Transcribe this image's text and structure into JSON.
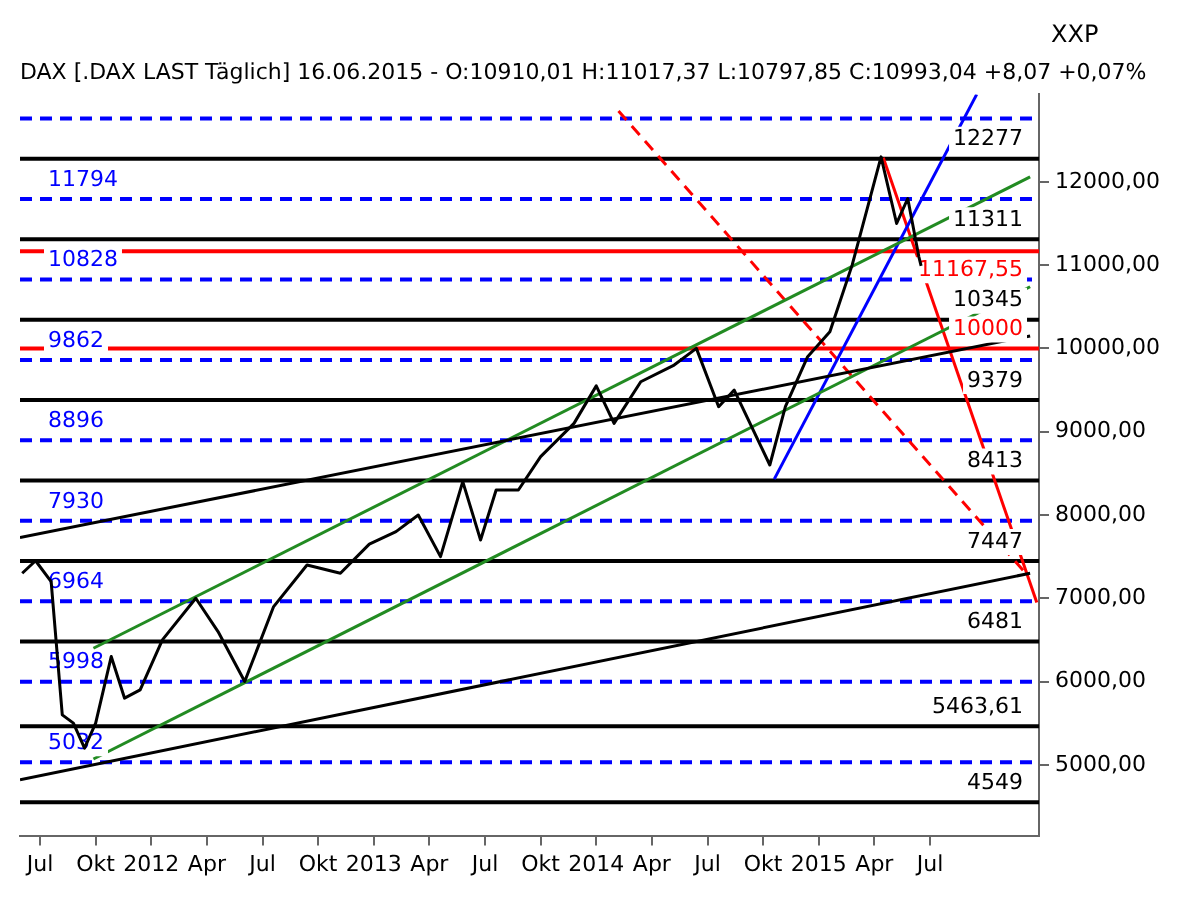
{
  "chart_data": {
    "type": "line",
    "title": "DAX [.DAX LAST Täglich] 16.06.2015 - O:10910,01 H:11017,37 L:10797,85 C:10993,04 +8,07 +0,07%",
    "annotations": [
      "XXP"
    ],
    "xlim": [
      2011.41,
      2015.99
    ],
    "xticks": [
      {
        "value": 2011.5,
        "label": "Jul"
      },
      {
        "value": 2011.75,
        "label": "Okt"
      },
      {
        "value": 2012,
        "label": "2012"
      },
      {
        "value": 2012.25,
        "label": "Apr"
      },
      {
        "value": 2012.5,
        "label": "Jul"
      },
      {
        "value": 2012.75,
        "label": "Okt"
      },
      {
        "value": 2013,
        "label": "2013"
      },
      {
        "value": 2013.25,
        "label": "Apr"
      },
      {
        "value": 2013.5,
        "label": "Jul"
      },
      {
        "value": 2013.75,
        "label": "Okt"
      },
      {
        "value": 2014,
        "label": "2014"
      },
      {
        "value": 2014.25,
        "label": "Apr"
      },
      {
        "value": 2014.5,
        "label": "Jul"
      },
      {
        "value": 2014.75,
        "label": "Okt"
      },
      {
        "value": 2015,
        "label": "2015"
      },
      {
        "value": 2015.25,
        "label": "Apr"
      },
      {
        "value": 2015.5,
        "label": "Jul"
      }
    ],
    "ylim": [
      4150,
      13050
    ],
    "yticks": [
      {
        "value": 5000,
        "label": "5000,00"
      },
      {
        "value": 6000,
        "label": "6000,00"
      },
      {
        "value": 7000,
        "label": "7000,00"
      },
      {
        "value": 8000,
        "label": "8000,00"
      },
      {
        "value": 9000,
        "label": "9000,00"
      },
      {
        "value": 10000,
        "label": "10000,00"
      },
      {
        "value": 11000,
        "label": "11000,00"
      },
      {
        "value": 12000,
        "label": "12000,00"
      }
    ],
    "grid": false,
    "legend": false,
    "marker": "none",
    "series": [
      {
        "color": "#000000",
        "x": [
          2011.42,
          2011.48,
          2011.55,
          2011.6,
          2011.65,
          2011.7,
          2011.75,
          2011.82,
          2011.88,
          2011.95,
          2012.05,
          2012.2,
          2012.3,
          2012.42,
          2012.55,
          2012.7,
          2012.85,
          2012.98,
          2013.1,
          2013.2,
          2013.3,
          2013.4,
          2013.48,
          2013.55,
          2013.65,
          2013.75,
          2013.9,
          2014,
          2014.08,
          2014.2,
          2014.35,
          2014.45,
          2014.55,
          2014.62,
          2014.78,
          2014.85,
          2014.95,
          2015.05,
          2015.15,
          2015.25,
          2015.28,
          2015.35,
          2015.4,
          2015.45,
          2015.46
        ],
        "values": [
          7300,
          7450,
          7200,
          5600,
          5500,
          5200,
          5500,
          6300,
          5800,
          5900,
          6500,
          7000,
          6600,
          6000,
          6900,
          7400,
          7300,
          7650,
          7800,
          8000,
          7500,
          8400,
          7700,
          8300,
          8300,
          8700,
          9100,
          9550,
          9100,
          9600,
          9800,
          10000,
          9300,
          9500,
          8600,
          9300,
          9900,
          10200,
          11000,
          12000,
          12300,
          11500,
          11800,
          11100,
          10990
        ]
      },
      {
        "type": "line",
        "color": "#000000",
        "x": [
          2011.41,
          2015.95
        ],
        "values": [
          4820,
          7300
        ]
      },
      {
        "type": "line",
        "color": "#000000",
        "x": [
          2011.41,
          2015.95
        ],
        "values": [
          7730,
          10150
        ]
      },
      {
        "type": "line",
        "color": "#228b22",
        "x": [
          2011.74,
          2015.95
        ],
        "values": [
          6400,
          12060
        ]
      },
      {
        "type": "line",
        "color": "#228b22",
        "x": [
          2011.74,
          2015.95
        ],
        "values": [
          5070,
          10740
        ]
      },
      {
        "type": "line",
        "color": "#0000ff",
        "x": [
          2014.8,
          2015.71
        ],
        "values": [
          8430,
          13050
        ]
      },
      {
        "type": "line",
        "color": "#ff0000",
        "x": [
          2015.29,
          2015.98
        ],
        "values": [
          12290,
          6950
        ]
      },
      {
        "type": "line",
        "color": "#ff0000",
        "line_style": "dashed",
        "x": [
          2014.1,
          2015.93
        ],
        "values": [
          12850,
          7300
        ]
      }
    ],
    "ref_lines": [
      {
        "axis": "y",
        "value": 12760,
        "color": "#0000ff",
        "line_style": "dashed"
      },
      {
        "axis": "y",
        "value": 11794,
        "label": "11794",
        "color": "#0000ff",
        "line_style": "dashed"
      },
      {
        "axis": "y",
        "value": 10828,
        "label": "10828",
        "color": "#0000ff",
        "line_style": "dashed"
      },
      {
        "axis": "y",
        "value": 9862,
        "label": "9862",
        "color": "#0000ff",
        "line_style": "dashed"
      },
      {
        "axis": "y",
        "value": 8896,
        "label": "8896",
        "color": "#0000ff",
        "line_style": "dashed"
      },
      {
        "axis": "y",
        "value": 7930,
        "label": "7930",
        "color": "#0000ff",
        "line_style": "dashed"
      },
      {
        "axis": "y",
        "value": 6964,
        "label": "6964",
        "color": "#0000ff",
        "line_style": "dashed"
      },
      {
        "axis": "y",
        "value": 5998,
        "label": "5998",
        "color": "#0000ff",
        "line_style": "dashed"
      },
      {
        "axis": "y",
        "value": 5032,
        "label": "5032",
        "color": "#0000ff",
        "line_style": "dashed"
      },
      {
        "axis": "y",
        "value": 12277,
        "label": "12277",
        "color": "#000000",
        "line_style": "solid"
      },
      {
        "axis": "y",
        "value": 11311,
        "label": "11311",
        "color": "#000000",
        "line_style": "solid"
      },
      {
        "axis": "y",
        "value": 11167.55,
        "label": "11167,55",
        "color": "#ff0000",
        "line_style": "solid"
      },
      {
        "axis": "y",
        "value": 10345,
        "label": "10345",
        "color": "#000000",
        "line_style": "solid"
      },
      {
        "axis": "y",
        "value": 10000,
        "label": "10000",
        "color": "#ff0000",
        "line_style": "solid"
      },
      {
        "axis": "y",
        "value": 9379,
        "label": "9379",
        "color": "#000000",
        "line_style": "solid"
      },
      {
        "axis": "y",
        "value": 8413,
        "label": "8413",
        "color": "#000000",
        "line_style": "solid"
      },
      {
        "axis": "y",
        "value": 7447,
        "label": "7447",
        "color": "#000000",
        "line_style": "solid"
      },
      {
        "axis": "y",
        "value": 6481,
        "label": "6481",
        "color": "#000000",
        "line_style": "solid"
      },
      {
        "axis": "y",
        "value": 5463.61,
        "label": "5463,61",
        "color": "#000000",
        "line_style": "solid"
      },
      {
        "axis": "y",
        "value": 4549,
        "label": "4549",
        "color": "#000000",
        "line_style": "solid"
      }
    ]
  }
}
